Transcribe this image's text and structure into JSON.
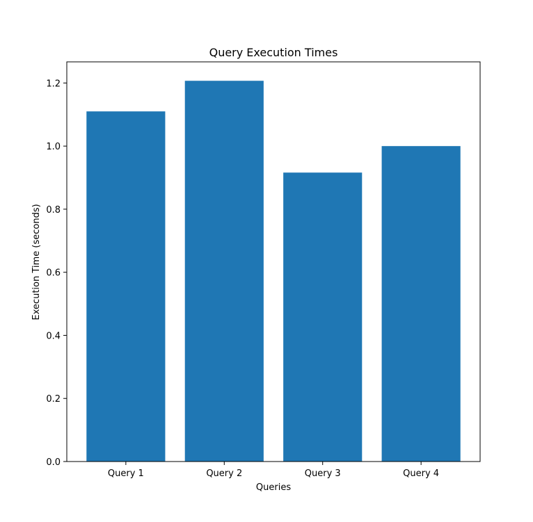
{
  "chart_data": {
    "type": "bar",
    "title": "Query Execution Times",
    "xlabel": "Queries",
    "ylabel": "Execution Time (seconds)",
    "categories": [
      "Query 1",
      "Query 2",
      "Query 3",
      "Query 4"
    ],
    "values": [
      1.11,
      1.207,
      0.916,
      1.0
    ],
    "ylim": [
      0,
      1.267
    ],
    "yticks": [
      "0.0",
      "0.2",
      "0.4",
      "0.6",
      "0.8",
      "1.0",
      "1.2"
    ],
    "bar_color": "#1f77b4",
    "grid": false
  }
}
